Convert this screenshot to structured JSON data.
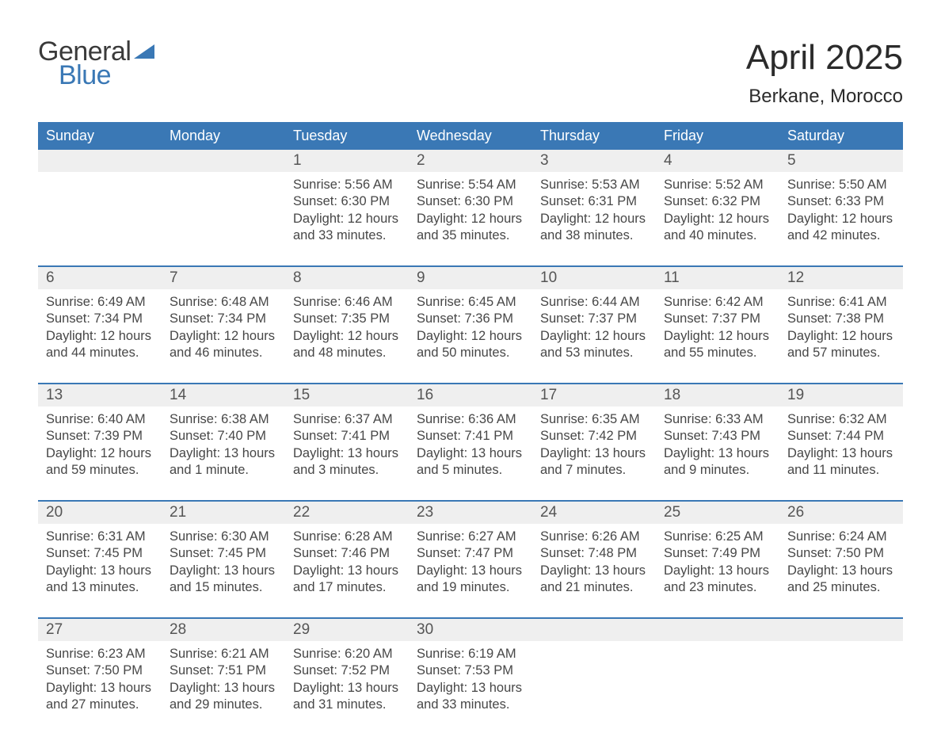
{
  "brand": {
    "word1": "General",
    "word2": "Blue",
    "flag_color": "#3a78b5"
  },
  "title": "April 2025",
  "location": "Berkane, Morocco",
  "colors": {
    "header_bg": "#3a78b5",
    "header_text": "#ffffff",
    "week_border": "#3a78b5",
    "date_bg": "#efefef",
    "page_bg": "#ffffff",
    "body_text": "#474747"
  },
  "typography": {
    "title_fontsize_pt": 33,
    "subtitle_fontsize_pt": 18,
    "dayhead_fontsize_pt": 14,
    "date_fontsize_pt": 14,
    "body_fontsize_pt": 12
  },
  "layout": {
    "columns": 7,
    "rows": 5,
    "week_start": "Sunday"
  },
  "day_names": [
    "Sunday",
    "Monday",
    "Tuesday",
    "Wednesday",
    "Thursday",
    "Friday",
    "Saturday"
  ],
  "weeks": [
    [
      {
        "date": "",
        "sunrise": "",
        "sunset": "",
        "daylight": ""
      },
      {
        "date": "",
        "sunrise": "",
        "sunset": "",
        "daylight": ""
      },
      {
        "date": "1",
        "sunrise": "5:56 AM",
        "sunset": "6:30 PM",
        "daylight": "12 hours and 33 minutes."
      },
      {
        "date": "2",
        "sunrise": "5:54 AM",
        "sunset": "6:30 PM",
        "daylight": "12 hours and 35 minutes."
      },
      {
        "date": "3",
        "sunrise": "5:53 AM",
        "sunset": "6:31 PM",
        "daylight": "12 hours and 38 minutes."
      },
      {
        "date": "4",
        "sunrise": "5:52 AM",
        "sunset": "6:32 PM",
        "daylight": "12 hours and 40 minutes."
      },
      {
        "date": "5",
        "sunrise": "5:50 AM",
        "sunset": "6:33 PM",
        "daylight": "12 hours and 42 minutes."
      }
    ],
    [
      {
        "date": "6",
        "sunrise": "6:49 AM",
        "sunset": "7:34 PM",
        "daylight": "12 hours and 44 minutes."
      },
      {
        "date": "7",
        "sunrise": "6:48 AM",
        "sunset": "7:34 PM",
        "daylight": "12 hours and 46 minutes."
      },
      {
        "date": "8",
        "sunrise": "6:46 AM",
        "sunset": "7:35 PM",
        "daylight": "12 hours and 48 minutes."
      },
      {
        "date": "9",
        "sunrise": "6:45 AM",
        "sunset": "7:36 PM",
        "daylight": "12 hours and 50 minutes."
      },
      {
        "date": "10",
        "sunrise": "6:44 AM",
        "sunset": "7:37 PM",
        "daylight": "12 hours and 53 minutes."
      },
      {
        "date": "11",
        "sunrise": "6:42 AM",
        "sunset": "7:37 PM",
        "daylight": "12 hours and 55 minutes."
      },
      {
        "date": "12",
        "sunrise": "6:41 AM",
        "sunset": "7:38 PM",
        "daylight": "12 hours and 57 minutes."
      }
    ],
    [
      {
        "date": "13",
        "sunrise": "6:40 AM",
        "sunset": "7:39 PM",
        "daylight": "12 hours and 59 minutes."
      },
      {
        "date": "14",
        "sunrise": "6:38 AM",
        "sunset": "7:40 PM",
        "daylight": "13 hours and 1 minute."
      },
      {
        "date": "15",
        "sunrise": "6:37 AM",
        "sunset": "7:41 PM",
        "daylight": "13 hours and 3 minutes."
      },
      {
        "date": "16",
        "sunrise": "6:36 AM",
        "sunset": "7:41 PM",
        "daylight": "13 hours and 5 minutes."
      },
      {
        "date": "17",
        "sunrise": "6:35 AM",
        "sunset": "7:42 PM",
        "daylight": "13 hours and 7 minutes."
      },
      {
        "date": "18",
        "sunrise": "6:33 AM",
        "sunset": "7:43 PM",
        "daylight": "13 hours and 9 minutes."
      },
      {
        "date": "19",
        "sunrise": "6:32 AM",
        "sunset": "7:44 PM",
        "daylight": "13 hours and 11 minutes."
      }
    ],
    [
      {
        "date": "20",
        "sunrise": "6:31 AM",
        "sunset": "7:45 PM",
        "daylight": "13 hours and 13 minutes."
      },
      {
        "date": "21",
        "sunrise": "6:30 AM",
        "sunset": "7:45 PM",
        "daylight": "13 hours and 15 minutes."
      },
      {
        "date": "22",
        "sunrise": "6:28 AM",
        "sunset": "7:46 PM",
        "daylight": "13 hours and 17 minutes."
      },
      {
        "date": "23",
        "sunrise": "6:27 AM",
        "sunset": "7:47 PM",
        "daylight": "13 hours and 19 minutes."
      },
      {
        "date": "24",
        "sunrise": "6:26 AM",
        "sunset": "7:48 PM",
        "daylight": "13 hours and 21 minutes."
      },
      {
        "date": "25",
        "sunrise": "6:25 AM",
        "sunset": "7:49 PM",
        "daylight": "13 hours and 23 minutes."
      },
      {
        "date": "26",
        "sunrise": "6:24 AM",
        "sunset": "7:50 PM",
        "daylight": "13 hours and 25 minutes."
      }
    ],
    [
      {
        "date": "27",
        "sunrise": "6:23 AM",
        "sunset": "7:50 PM",
        "daylight": "13 hours and 27 minutes."
      },
      {
        "date": "28",
        "sunrise": "6:21 AM",
        "sunset": "7:51 PM",
        "daylight": "13 hours and 29 minutes."
      },
      {
        "date": "29",
        "sunrise": "6:20 AM",
        "sunset": "7:52 PM",
        "daylight": "13 hours and 31 minutes."
      },
      {
        "date": "30",
        "sunrise": "6:19 AM",
        "sunset": "7:53 PM",
        "daylight": "13 hours and 33 minutes."
      },
      {
        "date": "",
        "sunrise": "",
        "sunset": "",
        "daylight": ""
      },
      {
        "date": "",
        "sunrise": "",
        "sunset": "",
        "daylight": ""
      },
      {
        "date": "",
        "sunrise": "",
        "sunset": "",
        "daylight": ""
      }
    ]
  ],
  "labels": {
    "sunrise": "Sunrise:",
    "sunset": "Sunset:",
    "daylight": "Daylight:"
  }
}
